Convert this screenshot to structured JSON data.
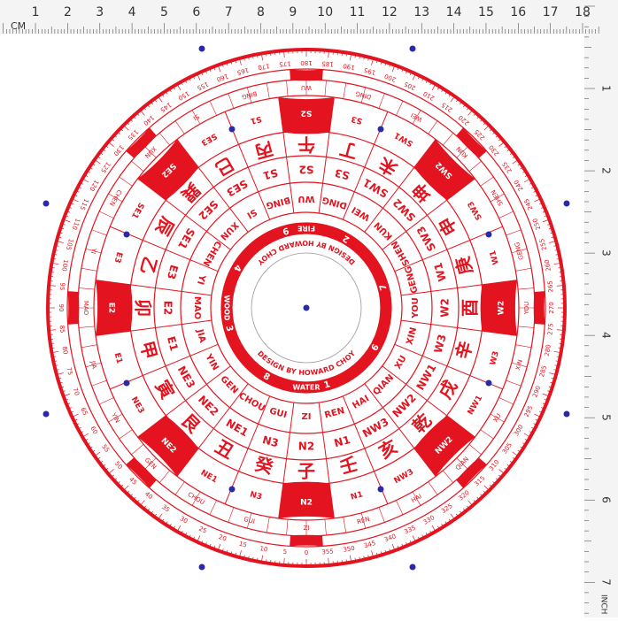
{
  "ruler_top": {
    "unit": "CM",
    "labels": [
      "1",
      "2",
      "3",
      "4",
      "5",
      "6",
      "7",
      "8",
      "9",
      "10",
      "11",
      "12",
      "13",
      "14",
      "15",
      "16",
      "17",
      "18"
    ]
  },
  "ruler_right": {
    "unit": "INCH",
    "labels": [
      "1",
      "2",
      "3",
      "4",
      "5",
      "6",
      "7"
    ]
  },
  "compass": {
    "credit": [
      "DESIGN BY HOWARD CHOY",
      "DESIGN BY HOWARD CHOY"
    ],
    "elements": {
      "north": "WATER",
      "south": "FIRE",
      "east": "WOOD"
    },
    "trigram_numbers": [
      1,
      8,
      3,
      4,
      9,
      2,
      7,
      6
    ],
    "mountains": [
      {
        "char": "壬",
        "pinyin": "REN",
        "code": "N1"
      },
      {
        "char": "子",
        "pinyin": "ZI",
        "code": "N2"
      },
      {
        "char": "癸",
        "pinyin": "GUI",
        "code": "N3"
      },
      {
        "char": "丑",
        "pinyin": "CHOU",
        "code": "NE1"
      },
      {
        "char": "艮",
        "pinyin": "GEN",
        "code": "NE2"
      },
      {
        "char": "寅",
        "pinyin": "YIN",
        "code": "NE3"
      },
      {
        "char": "甲",
        "pinyin": "JIA",
        "code": "E1"
      },
      {
        "char": "卯",
        "pinyin": "MAO",
        "code": "E2"
      },
      {
        "char": "乙",
        "pinyin": "YI",
        "code": "E3"
      },
      {
        "char": "辰",
        "pinyin": "CHEN",
        "code": "SE1"
      },
      {
        "char": "巽",
        "pinyin": "XUN",
        "code": "SE2"
      },
      {
        "char": "巳",
        "pinyin": "SI",
        "code": "SE3"
      },
      {
        "char": "丙",
        "pinyin": "BING",
        "code": "S1"
      },
      {
        "char": "午",
        "pinyin": "WU",
        "code": "S2"
      },
      {
        "char": "丁",
        "pinyin": "DING",
        "code": "S3"
      },
      {
        "char": "未",
        "pinyin": "WEI",
        "code": "SW1"
      },
      {
        "char": "坤",
        "pinyin": "KUN",
        "code": "SW2"
      },
      {
        "char": "申",
        "pinyin": "SHEN",
        "code": "SW3"
      },
      {
        "char": "庚",
        "pinyin": "GENG",
        "code": "W1"
      },
      {
        "char": "酉",
        "pinyin": "YOU",
        "code": "W2"
      },
      {
        "char": "辛",
        "pinyin": "XIN",
        "code": "W3"
      },
      {
        "char": "戌",
        "pinyin": "XU",
        "code": "NW1"
      },
      {
        "char": "乾",
        "pinyin": "QIAN",
        "code": "NW2"
      },
      {
        "char": "亥",
        "pinyin": "HAI",
        "code": "NW3"
      }
    ],
    "degrees": [
      0,
      5,
      10,
      15,
      20,
      25,
      30,
      35,
      40,
      45,
      50,
      55,
      60,
      65,
      70,
      75,
      80,
      85,
      90,
      95,
      100,
      105,
      110,
      115,
      120,
      125,
      130,
      135,
      140,
      145,
      150,
      155,
      160,
      165,
      170,
      175,
      180,
      185,
      190,
      195,
      200,
      205,
      210,
      215,
      220,
      225,
      230,
      235,
      240,
      245,
      250,
      255,
      260,
      265,
      270,
      275,
      280,
      285,
      290,
      295,
      300,
      305,
      310,
      315,
      320,
      325,
      330,
      335,
      340,
      345,
      350,
      355
    ]
  }
}
